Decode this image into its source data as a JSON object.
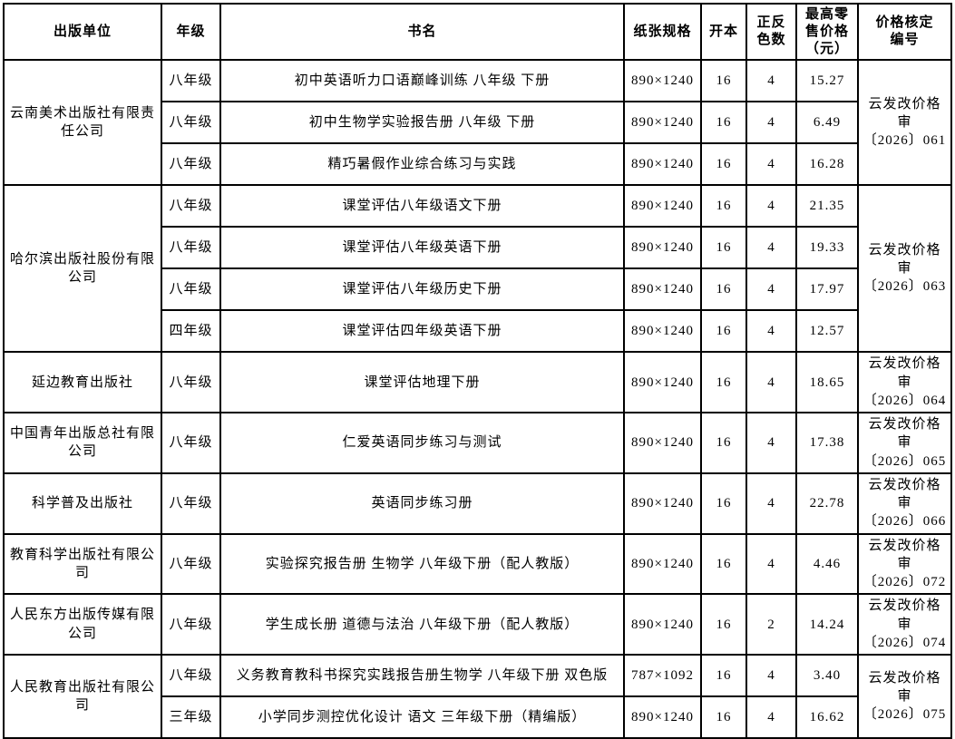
{
  "page": {
    "background_color": "#ffffff",
    "border_color": "#000000",
    "text_color": "#000000"
  },
  "table": {
    "headers": [
      {
        "key": "publisher",
        "label": "出版单位"
      },
      {
        "key": "grade",
        "label": "年级"
      },
      {
        "key": "title",
        "label": "书名"
      },
      {
        "key": "spec",
        "label": "纸张规格"
      },
      {
        "key": "format",
        "label": "开本"
      },
      {
        "key": "colors",
        "label": "正反\n色数"
      },
      {
        "key": "price",
        "label": "最高零\n售价格\n（元）"
      },
      {
        "key": "code",
        "label": "价格核定\n编号"
      }
    ],
    "groups": [
      {
        "publisher": "云南美术出版社有限责\n任公司",
        "price_code": "云发改价格审\n〔2026〕061",
        "rows": [
          {
            "grade": "八年级",
            "title": "初中英语听力口语巅峰训练 八年级 下册",
            "spec": "890×1240",
            "format": "16",
            "colors": "4",
            "price": "15.27"
          },
          {
            "grade": "八年级",
            "title": "初中生物学实验报告册 八年级 下册",
            "spec": "890×1240",
            "format": "16",
            "colors": "4",
            "price": "6.49"
          },
          {
            "grade": "八年级",
            "title": "精巧暑假作业综合练习与实践",
            "spec": "890×1240",
            "format": "16",
            "colors": "4",
            "price": "16.28"
          }
        ]
      },
      {
        "publisher": "哈尔滨出版社股份有限\n公司",
        "price_code": "云发改价格审\n〔2026〕063",
        "rows": [
          {
            "grade": "八年级",
            "title": "课堂评估八年级语文下册",
            "spec": "890×1240",
            "format": "16",
            "colors": "4",
            "price": "21.35"
          },
          {
            "grade": "八年级",
            "title": "课堂评估八年级英语下册",
            "spec": "890×1240",
            "format": "16",
            "colors": "4",
            "price": "19.33"
          },
          {
            "grade": "八年级",
            "title": "课堂评估八年级历史下册",
            "spec": "890×1240",
            "format": "16",
            "colors": "4",
            "price": "17.97"
          },
          {
            "grade": "四年级",
            "title": "课堂评估四年级英语下册",
            "spec": "890×1240",
            "format": "16",
            "colors": "4",
            "price": "12.57"
          }
        ]
      },
      {
        "publisher": "延边教育出版社",
        "price_code": "云发改价格审\n〔2026〕064",
        "rows": [
          {
            "grade": "八年级",
            "title": "课堂评估地理下册",
            "spec": "890×1240",
            "format": "16",
            "colors": "4",
            "price": "18.65"
          }
        ]
      },
      {
        "publisher": "中国青年出版总社有限\n公司",
        "price_code": "云发改价格审\n〔2026〕065",
        "rows": [
          {
            "grade": "八年级",
            "title": "仁爱英语同步练习与测试",
            "spec": "890×1240",
            "format": "16",
            "colors": "4",
            "price": "17.38"
          }
        ]
      },
      {
        "publisher": "科学普及出版社",
        "price_code": "云发改价格审\n〔2026〕066",
        "rows": [
          {
            "grade": "八年级",
            "title": "英语同步练习册",
            "spec": "890×1240",
            "format": "16",
            "colors": "4",
            "price": "22.78"
          }
        ]
      },
      {
        "publisher": "教育科学出版社有限公\n司",
        "price_code": "云发改价格审\n〔2026〕072",
        "rows": [
          {
            "grade": "八年级",
            "title": "实验探究报告册 生物学 八年级下册（配人教版）",
            "spec": "890×1240",
            "format": "16",
            "colors": "4",
            "price": "4.46"
          }
        ]
      },
      {
        "publisher": "人民东方出版传媒有限\n公司",
        "price_code": "云发改价格审\n〔2026〕074",
        "rows": [
          {
            "grade": "八年级",
            "title": "学生成长册 道德与法治 八年级下册（配人教版）",
            "spec": "890×1240",
            "format": "16",
            "colors": "2",
            "price": "14.24"
          }
        ]
      },
      {
        "publisher": "人民教育出版社有限公\n司",
        "price_code": "云发改价格审\n〔2026〕075",
        "rows": [
          {
            "grade": "八年级",
            "title": "义务教育教科书探究实践报告册生物学 八年级下册 双色版",
            "spec": "787×1092",
            "format": "16",
            "colors": "4",
            "price": "3.40"
          },
          {
            "grade": "三年级",
            "title": "小学同步测控优化设计 语文 三年级下册（精编版）",
            "spec": "890×1240",
            "format": "16",
            "colors": "4",
            "price": "16.62"
          }
        ]
      }
    ]
  }
}
